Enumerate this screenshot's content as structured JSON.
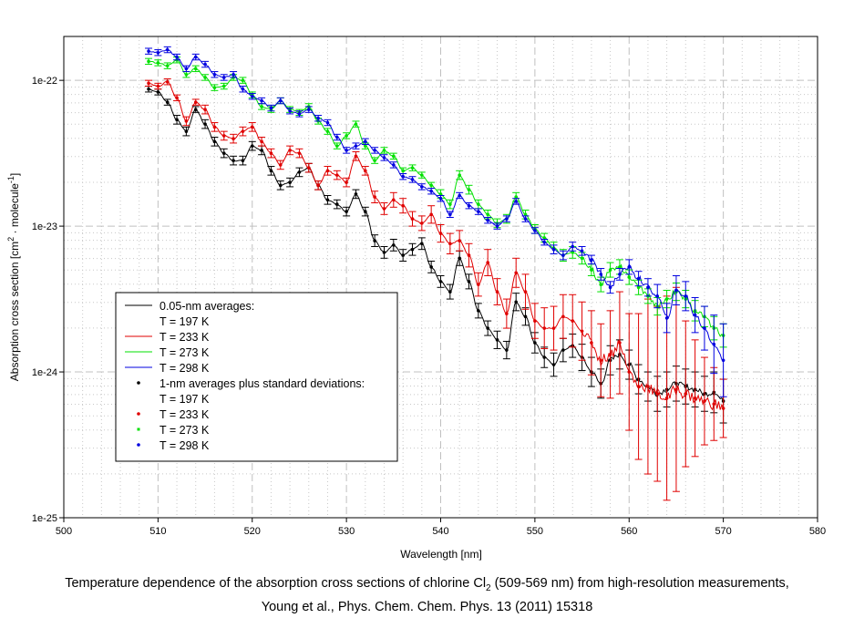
{
  "chart_data": {
    "type": "line",
    "title": "",
    "xlabel": "Wavelength [nm]",
    "ylabel": "Absorption cross section [cm² · molecule⁻¹]",
    "ylabel_parts": {
      "main": "Absorption cross section [cm",
      "sup1": "2",
      "mid": " · molecule",
      "sup2": "-1",
      "end": "]"
    },
    "xlim": [
      500,
      580
    ],
    "ylim": [
      1e-25,
      2e-22
    ],
    "yscale": "log",
    "grid": true,
    "x_ticks": [
      500,
      510,
      520,
      530,
      540,
      550,
      560,
      570,
      580
    ],
    "x_tick_labels": [
      "500",
      "510",
      "520",
      "530",
      "540",
      "550",
      "560",
      "570",
      "580"
    ],
    "y_ticks": [
      1e-22,
      1e-23,
      1e-24,
      1e-25
    ],
    "y_tick_labels": [
      "1e-22",
      "1e-23",
      "1e-24",
      "1e-25"
    ],
    "legend_placement": "lower-left",
    "legend": {
      "group1_title": "0.05-nm averages:",
      "group1": [
        "T = 197 K",
        "T = 233 K",
        "T = 273 K",
        "T = 298 K"
      ],
      "group2_title": "1-nm averages plus standard deviations:",
      "group2": [
        "T = 197 K",
        "T = 233 K",
        "T = 273 K",
        "T = 298 K"
      ]
    },
    "x": [
      509,
      510,
      511,
      512,
      513,
      514,
      515,
      516,
      517,
      518,
      519,
      520,
      521,
      522,
      523,
      524,
      525,
      526,
      527,
      528,
      529,
      530,
      531,
      532,
      533,
      534,
      535,
      536,
      537,
      538,
      539,
      540,
      541,
      542,
      543,
      544,
      545,
      546,
      547,
      548,
      549,
      550,
      551,
      552,
      553,
      554,
      555,
      556,
      557,
      558,
      559,
      560,
      561,
      562,
      563,
      564,
      565,
      566,
      567,
      568,
      569,
      570
    ],
    "series": [
      {
        "name": "T = 197 K",
        "color": "#000000",
        "log10_values": [
          -22.06,
          -22.08,
          -22.15,
          -22.27,
          -22.35,
          -22.2,
          -22.3,
          -22.42,
          -22.5,
          -22.55,
          -22.55,
          -22.45,
          -22.48,
          -22.62,
          -22.72,
          -22.7,
          -22.63,
          -22.6,
          -22.72,
          -22.82,
          -22.85,
          -22.9,
          -22.78,
          -22.9,
          -23.1,
          -23.18,
          -23.13,
          -23.2,
          -23.16,
          -23.12,
          -23.28,
          -23.38,
          -23.45,
          -23.22,
          -23.38,
          -23.58,
          -23.7,
          -23.78,
          -23.85,
          -23.52,
          -23.62,
          -23.8,
          -23.9,
          -23.95,
          -23.85,
          -23.82,
          -23.9,
          -24.0,
          -24.08,
          -23.92,
          -23.88,
          -23.95,
          -24.05,
          -24.1,
          -24.15,
          -24.12,
          -24.08,
          -24.1,
          -24.12,
          -24.15,
          -24.14,
          -24.2
        ],
        "errors_log10": [
          0.02,
          0.02,
          0.02,
          0.03,
          0.03,
          0.02,
          0.03,
          0.03,
          0.03,
          0.03,
          0.03,
          0.03,
          0.03,
          0.03,
          0.03,
          0.03,
          0.03,
          0.03,
          0.03,
          0.03,
          0.03,
          0.03,
          0.03,
          0.03,
          0.04,
          0.04,
          0.04,
          0.04,
          0.04,
          0.04,
          0.04,
          0.04,
          0.05,
          0.05,
          0.05,
          0.05,
          0.05,
          0.06,
          0.06,
          0.06,
          0.06,
          0.07,
          0.07,
          0.08,
          0.08,
          0.08,
          0.09,
          0.1,
          0.1,
          0.1,
          0.1,
          0.1,
          0.1,
          0.1,
          0.12,
          0.12,
          0.12,
          0.12,
          0.12,
          0.12,
          0.14,
          0.15
        ]
      },
      {
        "name": "T = 233 K",
        "color": "#e00000",
        "log10_values": [
          -22.02,
          -22.04,
          -22.01,
          -22.12,
          -22.28,
          -22.15,
          -22.2,
          -22.32,
          -22.38,
          -22.4,
          -22.35,
          -22.32,
          -22.42,
          -22.5,
          -22.58,
          -22.48,
          -22.5,
          -22.6,
          -22.72,
          -22.62,
          -22.65,
          -22.7,
          -22.52,
          -22.62,
          -22.8,
          -22.88,
          -22.82,
          -22.86,
          -22.95,
          -22.98,
          -22.92,
          -23.05,
          -23.12,
          -23.1,
          -23.2,
          -23.4,
          -23.25,
          -23.45,
          -23.6,
          -23.32,
          -23.45,
          -23.65,
          -23.7,
          -23.7,
          -23.62,
          -23.65,
          -23.72,
          -23.8,
          -23.92,
          -23.88,
          -23.8,
          -24.0,
          -24.1,
          -24.1,
          -24.15,
          -24.18,
          -24.12,
          -24.15,
          -24.18,
          -24.2,
          -24.22,
          -24.25
        ],
        "errors_log10": [
          0.02,
          0.02,
          0.02,
          0.02,
          0.03,
          0.02,
          0.03,
          0.03,
          0.03,
          0.03,
          0.03,
          0.03,
          0.03,
          0.03,
          0.03,
          0.03,
          0.03,
          0.03,
          0.03,
          0.03,
          0.03,
          0.03,
          0.03,
          0.03,
          0.04,
          0.04,
          0.05,
          0.05,
          0.05,
          0.05,
          0.06,
          0.06,
          0.07,
          0.07,
          0.08,
          0.08,
          0.09,
          0.09,
          0.1,
          0.1,
          0.12,
          0.12,
          0.14,
          0.15,
          0.15,
          0.18,
          0.2,
          0.22,
          0.25,
          0.3,
          0.35,
          0.4,
          0.5,
          0.6,
          0.6,
          0.7,
          0.7,
          0.5,
          0.4,
          0.3,
          0.25,
          0.2
        ]
      },
      {
        "name": "T = 273 K",
        "color": "#00e000",
        "log10_values": [
          -21.87,
          -21.88,
          -21.9,
          -21.86,
          -21.96,
          -21.92,
          -21.98,
          -22.05,
          -22.04,
          -21.98,
          -22.0,
          -22.1,
          -22.18,
          -22.2,
          -22.14,
          -22.2,
          -22.22,
          -22.18,
          -22.28,
          -22.35,
          -22.45,
          -22.38,
          -22.3,
          -22.45,
          -22.55,
          -22.48,
          -22.52,
          -22.62,
          -22.6,
          -22.65,
          -22.72,
          -22.78,
          -22.85,
          -22.65,
          -22.75,
          -22.85,
          -22.92,
          -22.98,
          -22.95,
          -22.8,
          -22.92,
          -23.02,
          -23.08,
          -23.15,
          -23.2,
          -23.18,
          -23.22,
          -23.3,
          -23.4,
          -23.3,
          -23.28,
          -23.35,
          -23.42,
          -23.48,
          -23.55,
          -23.5,
          -23.45,
          -23.5,
          -23.58,
          -23.62,
          -23.7,
          -23.75
        ],
        "errors_log10": [
          0.02,
          0.02,
          0.02,
          0.02,
          0.02,
          0.02,
          0.02,
          0.02,
          0.02,
          0.02,
          0.02,
          0.02,
          0.02,
          0.02,
          0.02,
          0.02,
          0.02,
          0.02,
          0.02,
          0.02,
          0.02,
          0.02,
          0.02,
          0.02,
          0.02,
          0.02,
          0.02,
          0.02,
          0.02,
          0.02,
          0.02,
          0.03,
          0.03,
          0.03,
          0.03,
          0.03,
          0.03,
          0.03,
          0.03,
          0.03,
          0.03,
          0.03,
          0.03,
          0.04,
          0.04,
          0.04,
          0.04,
          0.04,
          0.05,
          0.05,
          0.05,
          0.05,
          0.05,
          0.05,
          0.06,
          0.06,
          0.06,
          0.06,
          0.07,
          0.07,
          0.08,
          0.08
        ]
      },
      {
        "name": "T = 298 K",
        "color": "#0000e0",
        "log10_values": [
          -21.8,
          -21.81,
          -21.79,
          -21.84,
          -21.92,
          -21.84,
          -21.89,
          -21.96,
          -21.98,
          -21.96,
          -22.06,
          -22.11,
          -22.14,
          -22.19,
          -22.14,
          -22.21,
          -22.23,
          -22.2,
          -22.26,
          -22.29,
          -22.39,
          -22.48,
          -22.45,
          -22.42,
          -22.48,
          -22.53,
          -22.58,
          -22.66,
          -22.68,
          -22.73,
          -22.76,
          -22.81,
          -22.92,
          -22.79,
          -22.86,
          -22.9,
          -22.96,
          -23.0,
          -22.95,
          -22.83,
          -22.95,
          -23.03,
          -23.11,
          -23.16,
          -23.2,
          -23.14,
          -23.17,
          -23.23,
          -23.33,
          -23.42,
          -23.33,
          -23.28,
          -23.36,
          -23.42,
          -23.48,
          -23.63,
          -23.44,
          -23.48,
          -23.61,
          -23.7,
          -23.81,
          -23.92
        ],
        "errors_log10": [
          0.02,
          0.02,
          0.02,
          0.02,
          0.02,
          0.02,
          0.02,
          0.02,
          0.02,
          0.02,
          0.02,
          0.02,
          0.02,
          0.02,
          0.02,
          0.02,
          0.02,
          0.02,
          0.02,
          0.02,
          0.02,
          0.02,
          0.02,
          0.02,
          0.02,
          0.02,
          0.02,
          0.02,
          0.02,
          0.02,
          0.02,
          0.02,
          0.02,
          0.02,
          0.02,
          0.02,
          0.02,
          0.02,
          0.02,
          0.02,
          0.02,
          0.02,
          0.02,
          0.03,
          0.03,
          0.03,
          0.03,
          0.03,
          0.04,
          0.04,
          0.04,
          0.05,
          0.05,
          0.06,
          0.08,
          0.1,
          0.1,
          0.1,
          0.12,
          0.15,
          0.2,
          0.25
        ]
      }
    ]
  },
  "caption": {
    "line1_pre": "Temperature dependence of the absorption cross sections of chlorine Cl",
    "line1_sub": "2",
    "line1_post": " (509-569 nm) from high-resolution measurements,",
    "line2": "Young et al., Phys. Chem. Chem. Phys. 13 (2011) 15318"
  }
}
